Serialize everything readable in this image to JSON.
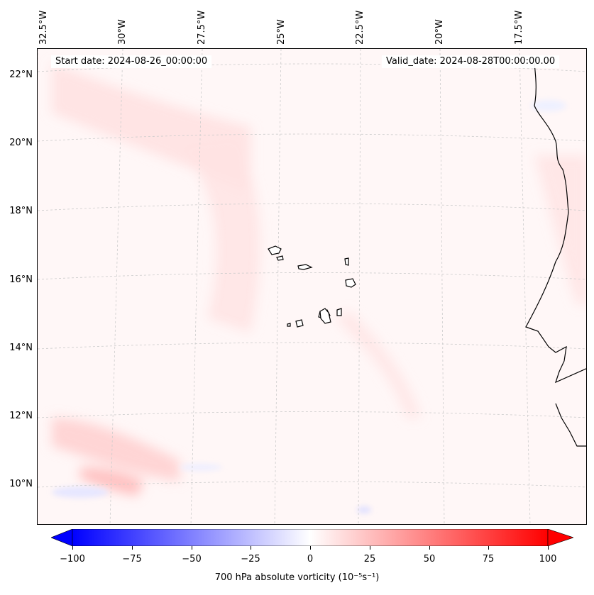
{
  "map": {
    "start_date": "Start date: 2024-08-26_00:00:00",
    "valid_date": "Valid_date: 2024-08-28T00:00:00.00",
    "lon_labels": [
      "32.5°W",
      "30°W",
      "27.5°W",
      "25°W",
      "22.5°W",
      "20°W",
      "17.5°W"
    ],
    "lat_labels": [
      "22°N",
      "20°N",
      "18°N",
      "16°N",
      "14°N",
      "12°N",
      "10°N"
    ],
    "variable": "700 hPa absolute vorticity",
    "units_display": "(10⁻⁵s⁻¹)",
    "colormap": "bwr",
    "coastline_color": "#000000",
    "gridline_style": "dashed light gray"
  },
  "colorbar": {
    "ticks": [
      "−100",
      "−75",
      "−50",
      "−25",
      "0",
      "25",
      "50",
      "75",
      "100"
    ],
    "range": [
      -100,
      100
    ],
    "extend": "both",
    "colors": {
      "min": "#0000ff",
      "mid": "#ffffff",
      "max": "#ff0000"
    }
  }
}
